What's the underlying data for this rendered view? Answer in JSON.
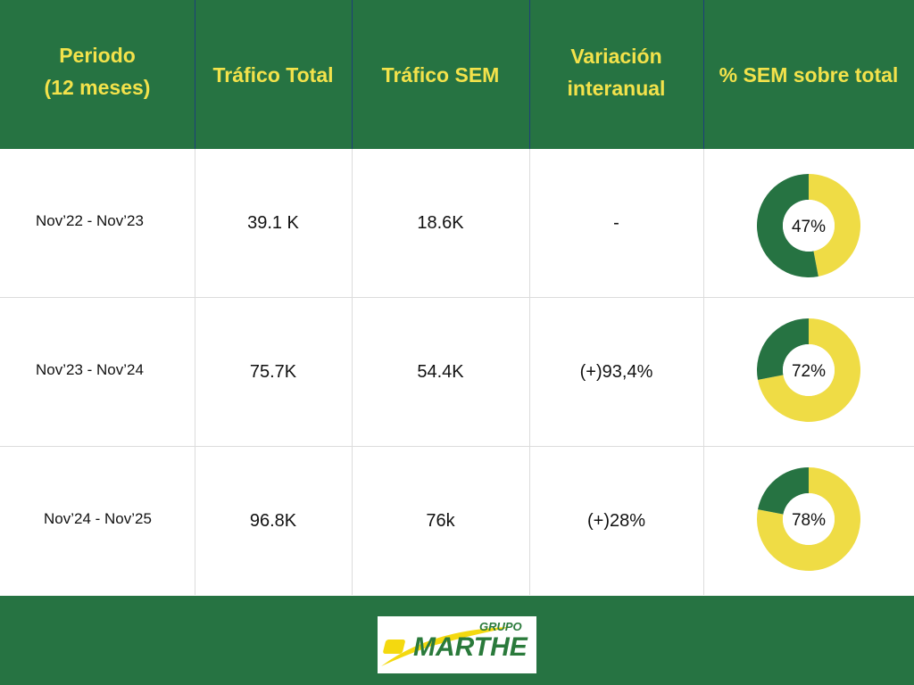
{
  "table": {
    "headers": [
      {
        "line1": "Periodo",
        "line2": "(12 meses)"
      },
      {
        "line1": "Tráfico Total",
        "line2": ""
      },
      {
        "line1": "Tráfico SEM",
        "line2": ""
      },
      {
        "line1": "Variación",
        "line2": "interanual"
      },
      {
        "line1": "% SEM sobre total",
        "line2": ""
      }
    ],
    "rows": [
      {
        "period": "Nov’22 - Nov’23",
        "total": "39.1 K",
        "sem": "18.6K",
        "variation": "-",
        "share_label": "47%"
      },
      {
        "period": "Nov’23 - Nov’24",
        "total": "75.7K",
        "sem": "54.4K",
        "variation": "(+)93,4%",
        "share_label": "72%"
      },
      {
        "period": "Nov’24 - Nov’25",
        "total": "96.8K",
        "sem": "76k",
        "variation": "(+)28%",
        "share_label": "78%"
      }
    ]
  },
  "chart_data": {
    "type": "table",
    "columns": [
      "Periodo (12 meses)",
      "Tráfico Total",
      "Tráfico SEM",
      "Variación interanual",
      "% SEM sobre total"
    ],
    "rows": [
      [
        "Nov’22 - Nov’23",
        "39.1 K",
        "18.6K",
        "-",
        "47%"
      ],
      [
        "Nov’23 - Nov’24",
        "75.7K",
        "54.4K",
        "(+)93,4%",
        "72%"
      ],
      [
        "Nov’24 - Nov’25",
        "96.8K",
        "76k",
        "(+)28%",
        "78%"
      ]
    ],
    "donuts": [
      {
        "sem_share": 47
      },
      {
        "sem_share": 72
      },
      {
        "sem_share": 78
      }
    ]
  },
  "colors": {
    "header_bg": "#267342",
    "header_text": "#f3e24b",
    "donut_sem": "#efdc45",
    "donut_rest": "#267342",
    "logo_yellow": "#f4d90f",
    "logo_green": "#2a7a3b"
  },
  "logo": {
    "top": "GRUPO",
    "main": "MARTHE"
  }
}
